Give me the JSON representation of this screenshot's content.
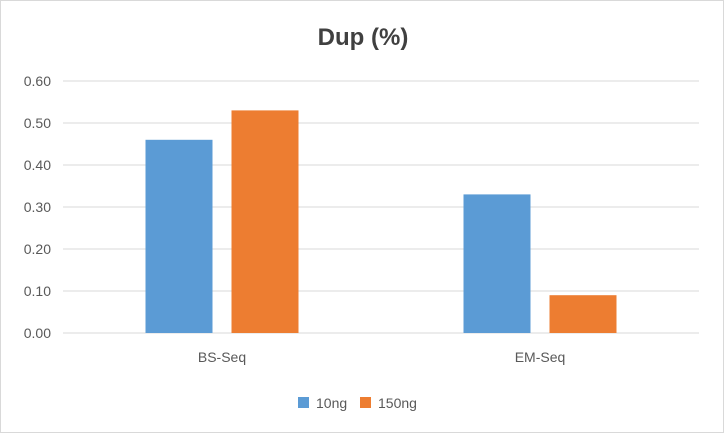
{
  "chart_data": {
    "type": "bar",
    "title": "Dup (%)",
    "categories": [
      "BS-Seq",
      "EM-Seq"
    ],
    "series": [
      {
        "name": "10ng",
        "values": [
          0.46,
          0.33
        ],
        "color": "#5b9bd5"
      },
      {
        "name": "150ng",
        "values": [
          0.53,
          0.09
        ],
        "color": "#ed7d31"
      }
    ],
    "y_ticks": [
      "0.00",
      "0.10",
      "0.20",
      "0.30",
      "0.40",
      "0.50",
      "0.60"
    ],
    "ylim": [
      0,
      0.6
    ],
    "xlabel": "",
    "ylabel": "",
    "grid": true,
    "legend_position": "bottom"
  }
}
